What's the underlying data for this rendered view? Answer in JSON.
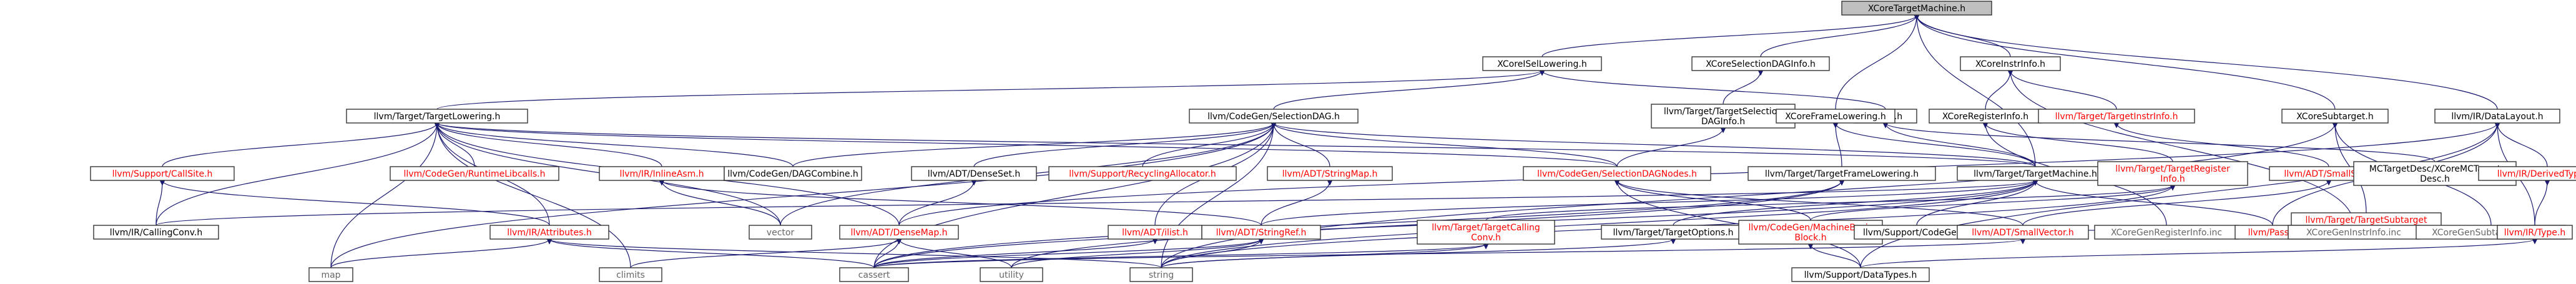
{
  "graph": {
    "title": "XCoreTargetMachine.h",
    "colors": {
      "edge": "#191970",
      "node_fill": "#ffffff",
      "root_fill": "#bfbfbf",
      "text_default": "#000000",
      "text_red": "#ff0000",
      "text_gray": "#666666"
    },
    "nodes": [
      {
        "id": "root",
        "lines": [
          "XCoreTargetMachine.h"
        ],
        "style": "root"
      },
      {
        "id": "isel",
        "lines": [
          "XCoreISelLowering.h"
        ],
        "style": "default"
      },
      {
        "id": "seldaginfo",
        "lines": [
          "XCoreSelectionDAGInfo.h"
        ],
        "style": "default"
      },
      {
        "id": "instrinfo",
        "lines": [
          "XCoreInstrInfo.h"
        ],
        "style": "default"
      },
      {
        "id": "tlowering",
        "lines": [
          "llvm/Target/TargetLowering.h"
        ],
        "style": "default"
      },
      {
        "id": "seldag",
        "lines": [
          "llvm/CodeGen/SelectionDAG.h"
        ],
        "style": "default"
      },
      {
        "id": "tseldaginfo",
        "lines": [
          "llvm/Target/TargetSelection",
          "DAGInfo.h"
        ],
        "style": "default"
      },
      {
        "id": "xcoreh",
        "lines": [
          "XCore.h"
        ],
        "style": "default"
      },
      {
        "id": "frame",
        "lines": [
          "XCoreFrameLowering.h"
        ],
        "style": "default"
      },
      {
        "id": "reginfo",
        "lines": [
          "XCoreRegisterInfo.h"
        ],
        "style": "default"
      },
      {
        "id": "tinstrinfo",
        "lines": [
          "llvm/Target/TargetInstrInfo.h"
        ],
        "style": "red"
      },
      {
        "id": "subtarget",
        "lines": [
          "XCoreSubtarget.h"
        ],
        "style": "default"
      },
      {
        "id": "datalayout",
        "lines": [
          "llvm/IR/DataLayout.h"
        ],
        "style": "default"
      },
      {
        "id": "callsite",
        "lines": [
          "llvm/Support/CallSite.h"
        ],
        "style": "red"
      },
      {
        "id": "runtimelibcalls",
        "lines": [
          "llvm/CodeGen/RuntimeLibcalls.h"
        ],
        "style": "red"
      },
      {
        "id": "inlineasm",
        "lines": [
          "llvm/IR/InlineAsm.h"
        ],
        "style": "red"
      },
      {
        "id": "dagcombine",
        "lines": [
          "llvm/CodeGen/DAGCombine.h"
        ],
        "style": "default"
      },
      {
        "id": "denseset",
        "lines": [
          "llvm/ADT/DenseSet.h"
        ],
        "style": "default"
      },
      {
        "id": "recycling",
        "lines": [
          "llvm/Support/RecyclingAllocator.h"
        ],
        "style": "red"
      },
      {
        "id": "stringmap",
        "lines": [
          "llvm/ADT/StringMap.h"
        ],
        "style": "red"
      },
      {
        "id": "seldagnodes",
        "lines": [
          "llvm/CodeGen/SelectionDAGNodes.h"
        ],
        "style": "red"
      },
      {
        "id": "tframelowering",
        "lines": [
          "llvm/Target/TargetFrameLowering.h"
        ],
        "style": "default"
      },
      {
        "id": "tmachine",
        "lines": [
          "llvm/Target/TargetMachine.h"
        ],
        "style": "default"
      },
      {
        "id": "tregisterinfo",
        "lines": [
          "llvm/Target/TargetRegister",
          "Info.h"
        ],
        "style": "red"
      },
      {
        "id": "smallset",
        "lines": [
          "llvm/ADT/SmallSet.h"
        ],
        "style": "red"
      },
      {
        "id": "tsubtargetinfo",
        "lines": [
          "llvm/Target/TargetSubtarget",
          "Info.h"
        ],
        "style": "red"
      },
      {
        "id": "mcdesc",
        "lines": [
          "MCTargetDesc/XCoreMCTarget",
          "Desc.h"
        ],
        "style": "default"
      },
      {
        "id": "derivedtypes",
        "lines": [
          "llvm/IR/DerivedTypes.h"
        ],
        "style": "red"
      },
      {
        "id": "callingconv",
        "lines": [
          "llvm/IR/CallingConv.h"
        ],
        "style": "default"
      },
      {
        "id": "attributes",
        "lines": [
          "llvm/IR/Attributes.h"
        ],
        "style": "red"
      },
      {
        "id": "vector",
        "lines": [
          "vector"
        ],
        "style": "gray"
      },
      {
        "id": "densemap",
        "lines": [
          "llvm/ADT/DenseMap.h"
        ],
        "style": "red"
      },
      {
        "id": "ilist",
        "lines": [
          "llvm/ADT/ilist.h"
        ],
        "style": "red"
      },
      {
        "id": "stringref",
        "lines": [
          "llvm/ADT/StringRef.h"
        ],
        "style": "red"
      },
      {
        "id": "tcallingconv",
        "lines": [
          "llvm/Target/TargetCalling",
          "Conv.h"
        ],
        "style": "red"
      },
      {
        "id": "toptions",
        "lines": [
          "llvm/Target/TargetOptions.h"
        ],
        "style": "default"
      },
      {
        "id": "mbb",
        "lines": [
          "llvm/CodeGen/MachineBasic",
          "Block.h"
        ],
        "style": "red"
      },
      {
        "id": "supportcodegen",
        "lines": [
          "llvm/Support/CodeGen.h"
        ],
        "style": "default"
      },
      {
        "id": "smallvector",
        "lines": [
          "llvm/ADT/SmallVector.h"
        ],
        "style": "red"
      },
      {
        "id": "reginfoinc",
        "lines": [
          "XCoreGenRegisterInfo.inc"
        ],
        "style": "gray"
      },
      {
        "id": "pass",
        "lines": [
          "llvm/Pass.h"
        ],
        "style": "red"
      },
      {
        "id": "instrinfoinc",
        "lines": [
          "XCoreGenInstrInfo.inc"
        ],
        "style": "gray"
      },
      {
        "id": "subtargetinfoinc",
        "lines": [
          "XCoreGenSubtargetInfo.inc"
        ],
        "style": "gray"
      },
      {
        "id": "irtype",
        "lines": [
          "llvm/IR/Type.h"
        ],
        "style": "red"
      },
      {
        "id": "map",
        "lines": [
          "map"
        ],
        "style": "gray"
      },
      {
        "id": "climits",
        "lines": [
          "climits"
        ],
        "style": "gray"
      },
      {
        "id": "cassert",
        "lines": [
          "cassert"
        ],
        "style": "gray"
      },
      {
        "id": "utility",
        "lines": [
          "utility"
        ],
        "style": "gray"
      },
      {
        "id": "string",
        "lines": [
          "string"
        ],
        "style": "gray"
      },
      {
        "id": "datatypes",
        "lines": [
          "llvm/Support/DataTypes.h"
        ],
        "style": "default"
      }
    ],
    "edges": [
      [
        "root",
        "isel"
      ],
      [
        "root",
        "seldaginfo"
      ],
      [
        "root",
        "instrinfo"
      ],
      [
        "root",
        "frame"
      ],
      [
        "root",
        "subtarget"
      ],
      [
        "root",
        "datalayout"
      ],
      [
        "root",
        "tmachine"
      ],
      [
        "isel",
        "tlowering"
      ],
      [
        "isel",
        "seldag"
      ],
      [
        "isel",
        "xcoreh"
      ],
      [
        "seldaginfo",
        "tseldaginfo"
      ],
      [
        "instrinfo",
        "reginfo"
      ],
      [
        "instrinfo",
        "tinstrinfo"
      ],
      [
        "instrinfo",
        "instrinfoinc"
      ],
      [
        "tlowering",
        "callsite"
      ],
      [
        "tlowering",
        "runtimelibcalls"
      ],
      [
        "tlowering",
        "inlineasm"
      ],
      [
        "tlowering",
        "dagcombine"
      ],
      [
        "tlowering",
        "seldagnodes"
      ],
      [
        "tlowering",
        "tmachine"
      ],
      [
        "tlowering",
        "callingconv"
      ],
      [
        "tlowering",
        "attributes"
      ],
      [
        "tlowering",
        "vector"
      ],
      [
        "tlowering",
        "densemap"
      ],
      [
        "tlowering",
        "map"
      ],
      [
        "tlowering",
        "climits"
      ],
      [
        "seldag",
        "dagcombine"
      ],
      [
        "seldag",
        "denseset"
      ],
      [
        "seldag",
        "recycling"
      ],
      [
        "seldag",
        "stringmap"
      ],
      [
        "seldag",
        "seldagnodes"
      ],
      [
        "seldag",
        "tmachine"
      ],
      [
        "seldag",
        "ilist"
      ],
      [
        "seldag",
        "vector"
      ],
      [
        "seldag",
        "map"
      ],
      [
        "seldag",
        "string"
      ],
      [
        "seldag",
        "cassert"
      ],
      [
        "tseldaginfo",
        "seldagnodes"
      ],
      [
        "xcoreh",
        "mcdesc"
      ],
      [
        "xcoreh",
        "tmachine"
      ],
      [
        "frame",
        "tframelowering"
      ],
      [
        "frame",
        "tmachine"
      ],
      [
        "reginfo",
        "tregisterinfo"
      ],
      [
        "reginfo",
        "reginfoinc"
      ],
      [
        "tinstrinfo",
        "smallset"
      ],
      [
        "subtarget",
        "tsubtargetinfo"
      ],
      [
        "subtarget",
        "subtargetinfoinc"
      ],
      [
        "subtarget",
        "string"
      ],
      [
        "datalayout",
        "derivedtypes"
      ],
      [
        "datalayout",
        "irtype"
      ],
      [
        "datalayout",
        "pass"
      ],
      [
        "datalayout",
        "densemap"
      ],
      [
        "datalayout",
        "datatypes"
      ],
      [
        "callsite",
        "attributes"
      ],
      [
        "callsite",
        "callingconv"
      ],
      [
        "inlineasm",
        "vector"
      ],
      [
        "inlineasm",
        "stringref"
      ],
      [
        "denseset",
        "densemap"
      ],
      [
        "stringmap",
        "stringref"
      ],
      [
        "seldagnodes",
        "mbb"
      ],
      [
        "seldagnodes",
        "smallvector"
      ],
      [
        "seldagnodes",
        "datatypes"
      ],
      [
        "tframelowering",
        "utility"
      ],
      [
        "tframelowering",
        "cassert"
      ],
      [
        "tmachine",
        "toptions"
      ],
      [
        "tmachine",
        "supportcodegen"
      ],
      [
        "tmachine",
        "pass"
      ],
      [
        "tmachine",
        "stringref"
      ],
      [
        "tmachine",
        "cassert"
      ],
      [
        "tmachine",
        "string"
      ],
      [
        "tmachine",
        "callingconv"
      ],
      [
        "tregisterinfo",
        "mbb"
      ],
      [
        "tregisterinfo",
        "tcallingconv"
      ],
      [
        "tregisterinfo",
        "string"
      ],
      [
        "smallset",
        "smallvector"
      ],
      [
        "tsubtargetinfo",
        "supportcodegen"
      ],
      [
        "derivedtypes",
        "irtype"
      ],
      [
        "attributes",
        "map"
      ],
      [
        "attributes",
        "cassert"
      ],
      [
        "attributes",
        "string"
      ],
      [
        "densemap",
        "climits"
      ],
      [
        "densemap",
        "utility"
      ],
      [
        "densemap",
        "cassert"
      ],
      [
        "ilist",
        "cassert"
      ],
      [
        "stringref",
        "cassert"
      ],
      [
        "stringref",
        "string"
      ],
      [
        "stringref",
        "utility"
      ],
      [
        "tcallingconv",
        "string"
      ],
      [
        "tcallingconv",
        "cassert"
      ],
      [
        "toptions",
        "string"
      ],
      [
        "mbb",
        "datatypes"
      ],
      [
        "smallvector",
        "cassert"
      ],
      [
        "irtype",
        "datatypes"
      ]
    ]
  }
}
